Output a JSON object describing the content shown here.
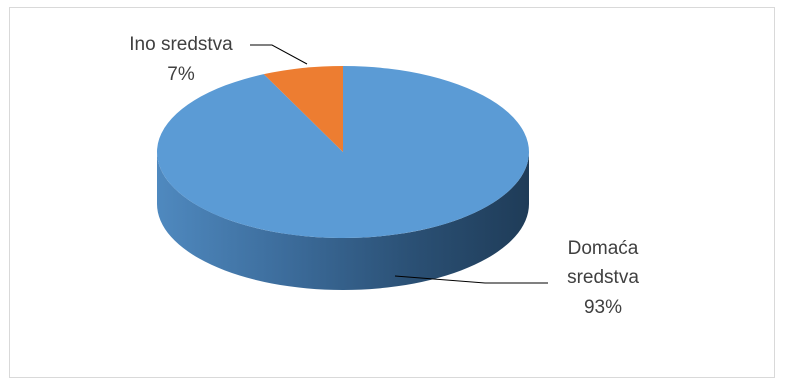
{
  "chart_data": {
    "type": "pie",
    "style": "3d",
    "title": "",
    "legend": "none",
    "categories": [
      "Domaća sredstva",
      "Ino sredstva"
    ],
    "values": [
      93,
      7
    ],
    "value_labels": [
      "93%",
      "7%"
    ],
    "label_lines": [
      [
        "Domaća",
        "sredstva"
      ],
      [
        "Ino sredstva"
      ]
    ],
    "colors": [
      "#5b9bd5",
      "#ed7d31"
    ]
  }
}
